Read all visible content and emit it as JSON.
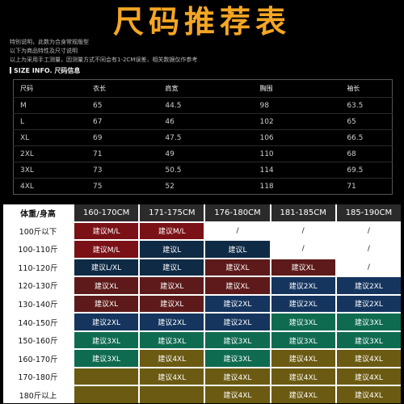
{
  "title": "尺码推荐表",
  "notes": [
    "特别说明，此数为合身常规版型",
    "以下为商品特性及尺寸说明",
    "以上为采用手工测量，因测量方式不同会有1-2CM误差，相关数据仅作参考"
  ],
  "size_info_label": "SIZE INFO. 尺码信息",
  "size_table": {
    "headers": [
      "尺码",
      "衣长",
      "肩宽",
      "胸围",
      "袖长"
    ],
    "rows": [
      [
        "M",
        "65",
        "44.5",
        "98",
        "63.5"
      ],
      [
        "L",
        "67",
        "46",
        "102",
        "65"
      ],
      [
        "XL",
        "69",
        "47.5",
        "106",
        "66.5"
      ],
      [
        "2XL",
        "71",
        "49",
        "110",
        "68"
      ],
      [
        "3XL",
        "73",
        "50.5",
        "114",
        "69.5"
      ],
      [
        "4XL",
        "75",
        "52",
        "118",
        "71"
      ]
    ]
  },
  "rec": {
    "corner": "体重/身高",
    "heights": [
      "160-170CM",
      "171-175CM",
      "176-180CM",
      "181-185CM",
      "185-190CM"
    ],
    "weights": [
      "100斤以下",
      "100-110斤",
      "110-120斤",
      "120-130斤",
      "130-140斤",
      "140-150斤",
      "150-160斤",
      "160-170斤",
      "170-180斤",
      "180斤以上"
    ],
    "colors": {
      "M": "#7a1116",
      "ML": "#7a1116",
      "LXL": "#0e2a45",
      "L": "#0e2a45",
      "XL": "#5e1a1a",
      "2XL": "#15355f",
      "3XL": "#0f6b50",
      "4XL": "#6b5a12",
      "blank": "#ffffff"
    },
    "cells": [
      [
        [
          "建议M/L",
          "M"
        ],
        [
          "建议M/L",
          "M"
        ],
        [
          "/",
          "blank"
        ],
        [
          "/",
          "blank"
        ],
        [
          "/",
          "blank"
        ]
      ],
      [
        [
          "建议M/L",
          "M"
        ],
        [
          "建议L",
          "L"
        ],
        [
          "建议L",
          "L"
        ],
        [
          "/",
          "blank"
        ],
        [
          "/",
          "blank"
        ]
      ],
      [
        [
          "建议L/XL",
          "LXL"
        ],
        [
          "建议L",
          "L"
        ],
        [
          "建议XL",
          "XL"
        ],
        [
          "建议XL",
          "XL"
        ],
        [
          "/",
          "blank"
        ]
      ],
      [
        [
          "建议XL",
          "XL"
        ],
        [
          "建议XL",
          "XL"
        ],
        [
          "建议XL",
          "XL"
        ],
        [
          "建议2XL",
          "2XL"
        ],
        [
          "建议2XL",
          "2XL"
        ]
      ],
      [
        [
          "建议XL",
          "XL"
        ],
        [
          "建议XL",
          "XL"
        ],
        [
          "建议2XL",
          "2XL"
        ],
        [
          "建议2XL",
          "2XL"
        ],
        [
          "建议2XL",
          "2XL"
        ]
      ],
      [
        [
          "建议2XL",
          "2XL"
        ],
        [
          "建议2XL",
          "2XL"
        ],
        [
          "建议2XL",
          "2XL"
        ],
        [
          "建议3XL",
          "3XL"
        ],
        [
          "建议3XL",
          "3XL"
        ]
      ],
      [
        [
          "建议3XL",
          "3XL"
        ],
        [
          "建议3XL",
          "3XL"
        ],
        [
          "建议3XL",
          "3XL"
        ],
        [
          "建议3XL",
          "3XL"
        ],
        [
          "建议3XL",
          "3XL"
        ]
      ],
      [
        [
          "建议3XL",
          "3XL"
        ],
        [
          "建议4XL",
          "4XL"
        ],
        [
          "建议3XL",
          "3XL"
        ],
        [
          "建议4XL",
          "4XL"
        ],
        [
          "建议4XL",
          "4XL"
        ]
      ],
      [
        [
          "",
          "4XL"
        ],
        [
          "建议4XL",
          "4XL"
        ],
        [
          "建议4XL",
          "4XL"
        ],
        [
          "建议4XL",
          "4XL"
        ],
        [
          "建议4XL",
          "4XL"
        ]
      ],
      [
        [
          "",
          "4XL"
        ],
        [
          "",
          "4XL"
        ],
        [
          "建议4XL",
          "4XL"
        ],
        [
          "建议4XL",
          "4XL"
        ],
        [
          "建议4XL",
          "4XL"
        ]
      ]
    ]
  }
}
